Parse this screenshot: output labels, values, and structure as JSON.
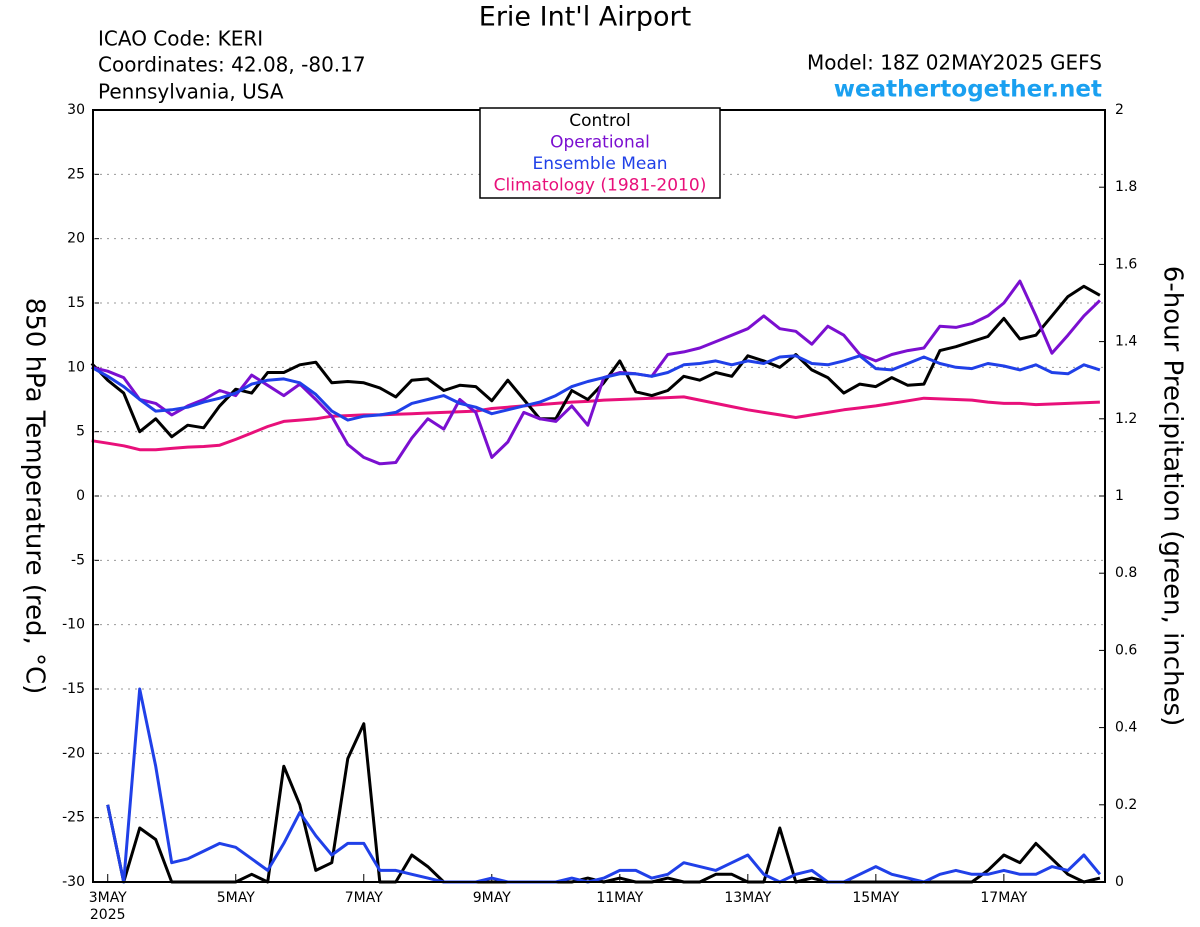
{
  "chart_data": {
    "type": "line",
    "title": "Erie Int'l Airport",
    "info_left": [
      "ICAO Code: KERI",
      "Coordinates: 42.08, -80.17",
      "Pennsylvania, USA"
    ],
    "model": "Model: 18Z 02MAY2025 GEFS",
    "site": "weathertogether.net",
    "ylabel": "850 hPa Temperature (red, °C)",
    "y2label": "6-hour Precipitation (green, inches)",
    "x_year": "2025",
    "x": [
      2.75,
      3,
      3.25,
      3.5,
      3.75,
      4,
      4.25,
      4.5,
      4.75,
      5,
      5.25,
      5.5,
      5.75,
      6,
      6.25,
      6.5,
      6.75,
      7,
      7.25,
      7.5,
      7.75,
      8,
      8.25,
      8.5,
      8.75,
      9,
      9.25,
      9.5,
      9.75,
      10,
      10.25,
      10.5,
      10.75,
      11,
      11.25,
      11.5,
      11.75,
      12,
      12.25,
      12.5,
      12.75,
      13,
      13.25,
      13.5,
      13.75,
      14,
      14.25,
      14.5,
      14.75,
      15,
      15.25,
      15.5,
      15.75,
      16,
      16.25,
      16.5,
      16.75,
      17,
      17.25,
      17.5,
      17.75,
      18,
      18.25,
      18.5
    ],
    "xlim": [
      2.77,
      18.58
    ],
    "xticks": [
      {
        "value": 3,
        "label": "3MAY"
      },
      {
        "value": 5,
        "label": "5MAY"
      },
      {
        "value": 7,
        "label": "7MAY"
      },
      {
        "value": 9,
        "label": "9MAY"
      },
      {
        "value": 11,
        "label": "11MAY"
      },
      {
        "value": 13,
        "label": "13MAY"
      },
      {
        "value": 15,
        "label": "15MAY"
      },
      {
        "value": 17,
        "label": "17MAY"
      }
    ],
    "ylim": [
      -30,
      30
    ],
    "yticks": [
      -30,
      -25,
      -20,
      -15,
      -10,
      -5,
      0,
      5,
      10,
      15,
      20,
      25,
      30
    ],
    "y2lim": [
      0,
      2
    ],
    "y2ticks": [
      0,
      0.2,
      0.4,
      0.6,
      0.8,
      1,
      1.2,
      1.4,
      1.6,
      1.8,
      2
    ],
    "grid": true,
    "series": [
      {
        "name": "Control",
        "color": "#000000",
        "values": [
          10.3,
          9,
          8,
          5,
          6,
          4.6,
          5.5,
          5.3,
          7,
          8.3,
          8,
          9.6,
          9.6,
          10.2,
          10.4,
          8.8,
          8.9,
          8.8,
          8.4,
          7.7,
          9,
          9.1,
          8.2,
          8.6,
          8.5,
          7.4,
          9,
          7.5,
          6,
          6,
          8.2,
          7.5,
          8.8,
          10.5,
          8.1,
          7.8,
          8.2,
          9.3,
          9,
          9.6,
          9.3,
          10.9,
          10.5,
          10,
          11,
          9.8,
          9.2,
          8,
          8.7,
          8.5,
          9.2,
          8.6,
          8.7,
          11.3,
          11.6,
          12,
          12.4,
          13.8,
          12.2,
          12.5,
          14,
          15.5,
          16.3,
          15.6
        ]
      },
      {
        "name": "Operational",
        "color": "#7b0fd0",
        "values": [
          10,
          9.7,
          9.2,
          7.5,
          7.2,
          6.3,
          7,
          7.5,
          8.2,
          7.8,
          9.4,
          8.6,
          7.8,
          8.7,
          7.5,
          6.2,
          4,
          3,
          2.5,
          2.6,
          4.5,
          6,
          5.2,
          7.5,
          6.5,
          3,
          4.2,
          6.5,
          6,
          5.8,
          7,
          5.5,
          9.2,
          9.6,
          9.5,
          9.3,
          11,
          11.2,
          11.5,
          12,
          12.5,
          13,
          14,
          13,
          12.8,
          11.8,
          13.2,
          12.5,
          11,
          10.5,
          11,
          11.3,
          11.5,
          13.2,
          13.1,
          13.4,
          14,
          15,
          16.7,
          14,
          11.1,
          12.5,
          14,
          15.2
        ]
      },
      {
        "name": "Ensemble Mean",
        "color": "#2040e8",
        "values": [
          10,
          9.3,
          8.5,
          7.5,
          6.6,
          6.7,
          6.9,
          7.3,
          7.6,
          8,
          8.7,
          9,
          9.1,
          8.8,
          7.9,
          6.6,
          5.9,
          6.2,
          6.3,
          6.5,
          7.2,
          7.5,
          7.8,
          7.2,
          6.9,
          6.4,
          6.7,
          7,
          7.3,
          7.8,
          8.5,
          8.9,
          9.2,
          9.5,
          9.5,
          9.3,
          9.6,
          10.2,
          10.3,
          10.5,
          10.2,
          10.5,
          10.3,
          10.8,
          10.9,
          10.3,
          10.2,
          10.5,
          10.9,
          9.9,
          9.8,
          10.3,
          10.8,
          10.3,
          10,
          9.9,
          10.3,
          10.1,
          9.8,
          10.2,
          9.6,
          9.5,
          10.2,
          9.8
        ]
      },
      {
        "name": "Climatology (1981-2010)",
        "color": "#e8107a",
        "values": [
          4.3,
          4.1,
          3.9,
          3.6,
          3.6,
          3.7,
          3.8,
          3.85,
          3.95,
          4.4,
          4.9,
          5.4,
          5.8,
          5.9,
          6,
          6.2,
          6.25,
          6.3,
          6.3,
          6.35,
          6.4,
          6.45,
          6.5,
          6.55,
          6.6,
          6.8,
          6.9,
          7,
          7.1,
          7.2,
          7.3,
          7.35,
          7.45,
          7.5,
          7.55,
          7.6,
          7.65,
          7.7,
          7.45,
          7.2,
          6.95,
          6.7,
          6.5,
          6.3,
          6.1,
          6.3,
          6.5,
          6.7,
          6.85,
          7,
          7.2,
          7.4,
          7.6,
          7.55,
          7.5,
          7.45,
          7.3,
          7.2,
          7.2,
          7.1,
          7.15,
          7.2,
          7.25,
          7.3
        ]
      },
      {
        "color": "#000000",
        "axis": "y2",
        "values": [
          null,
          0.2,
          0,
          0.14,
          0.11,
          0,
          0,
          0,
          0,
          0,
          0.02,
          0,
          0.3,
          0.2,
          0.03,
          0.05,
          0.32,
          0.41,
          0,
          0,
          0.07,
          0.04,
          0,
          0,
          0,
          0,
          0,
          0,
          0,
          0,
          0,
          0.01,
          0,
          0.01,
          0,
          0,
          0.01,
          0,
          0,
          0.02,
          0.02,
          0,
          0,
          0.14,
          0,
          0.01,
          0,
          0,
          0,
          0,
          0,
          0,
          0,
          0,
          0,
          0,
          0.03,
          0.07,
          0.05,
          0.1,
          0.06,
          0.02,
          0,
          0.01
        ]
      },
      {
        "color": "#2040e8",
        "axis": "y2",
        "values": [
          null,
          0.2,
          0,
          0.5,
          0.3,
          0.05,
          0.06,
          0.08,
          0.1,
          0.09,
          0.06,
          0.03,
          0.1,
          0.18,
          0.12,
          0.07,
          0.1,
          0.1,
          0.03,
          0.03,
          0.02,
          0.01,
          0,
          0,
          0,
          0.01,
          0,
          0,
          0,
          0,
          0.01,
          0,
          0.01,
          0.03,
          0.03,
          0.01,
          0.02,
          0.05,
          0.04,
          0.03,
          0.05,
          0.07,
          0.02,
          0,
          0.02,
          0.03,
          0,
          0,
          0.02,
          0.04,
          0.02,
          0.01,
          0,
          0.02,
          0.03,
          0.02,
          0.02,
          0.03,
          0.02,
          0.02,
          0.04,
          0.03,
          0.07,
          0.02
        ]
      }
    ]
  }
}
